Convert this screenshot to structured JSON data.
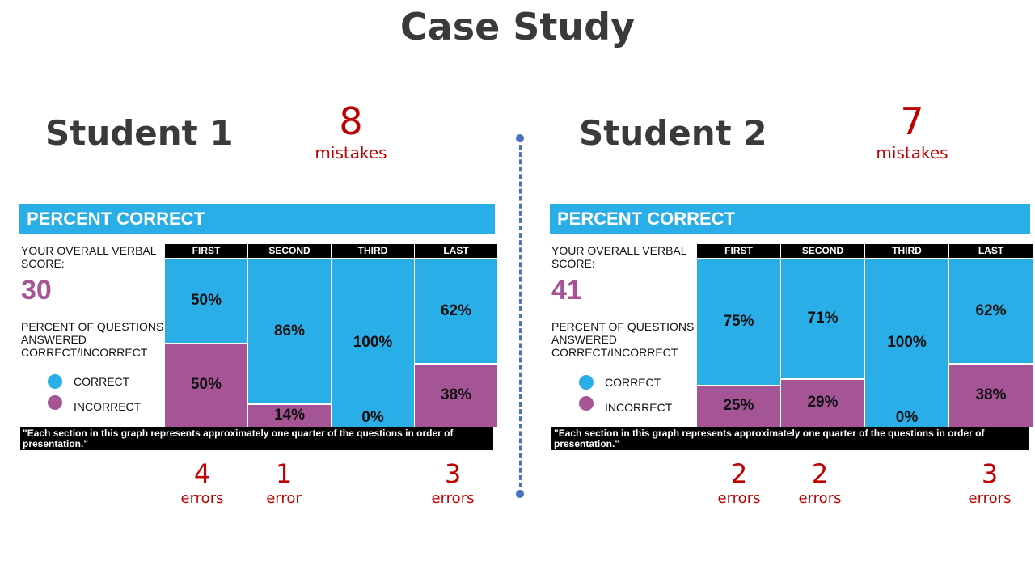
{
  "title": "Case Study",
  "colors": {
    "correct": "#29aee8",
    "incorrect": "#a55596",
    "accent_red": "#c00000"
  },
  "students": [
    {
      "name": "Student 1",
      "mistakes_count": "8",
      "mistakes_label": "mistakes",
      "panel_title": "PERCENT CORRECT",
      "score_label": "YOUR OVERALL VERBAL SCORE:",
      "score": "30",
      "percent_label": "PERCENT OF QUESTIONS ANSWERED CORRECT/INCORRECT",
      "legend": {
        "correct": "CORRECT",
        "incorrect": "INCORRECT"
      },
      "footer": "\"Each section in this graph represents approximately one quarter of the questions in order of presentation.\"",
      "errors": [
        {
          "quarter": "FIRST",
          "count": "4",
          "label": "errors"
        },
        {
          "quarter": "SECOND",
          "count": "1",
          "label": "error"
        },
        {
          "quarter": "LAST",
          "count": "3",
          "label": "errors"
        }
      ]
    },
    {
      "name": "Student 2",
      "mistakes_count": "7",
      "mistakes_label": "mistakes",
      "panel_title": "PERCENT CORRECT",
      "score_label": "YOUR OVERALL VERBAL SCORE:",
      "score": "41",
      "percent_label": "PERCENT OF QUESTIONS ANSWERED CORRECT/INCORRECT",
      "legend": {
        "correct": "CORRECT",
        "incorrect": "INCORRECT"
      },
      "footer": "\"Each section in this graph represents approximately one quarter of the questions in order of presentation.\"",
      "errors": [
        {
          "quarter": "FIRST",
          "count": "2",
          "label": "errors"
        },
        {
          "quarter": "SECOND",
          "count": "2",
          "label": "errors"
        },
        {
          "quarter": "LAST",
          "count": "3",
          "label": "errors"
        }
      ]
    }
  ],
  "chart_data": [
    {
      "type": "bar",
      "stacked": true,
      "title": "PERCENT CORRECT",
      "categories": [
        "FIRST",
        "SECOND",
        "THIRD",
        "LAST"
      ],
      "series": [
        {
          "name": "CORRECT",
          "values": [
            50,
            86,
            100,
            62
          ]
        },
        {
          "name": "INCORRECT",
          "values": [
            50,
            14,
            0,
            38
          ]
        }
      ],
      "ylim": [
        0,
        100
      ]
    },
    {
      "type": "bar",
      "stacked": true,
      "title": "PERCENT CORRECT",
      "categories": [
        "FIRST",
        "SECOND",
        "THIRD",
        "LAST"
      ],
      "series": [
        {
          "name": "CORRECT",
          "values": [
            75,
            71,
            100,
            62
          ]
        },
        {
          "name": "INCORRECT",
          "values": [
            25,
            29,
            0,
            38
          ]
        }
      ],
      "ylim": [
        0,
        100
      ]
    }
  ]
}
